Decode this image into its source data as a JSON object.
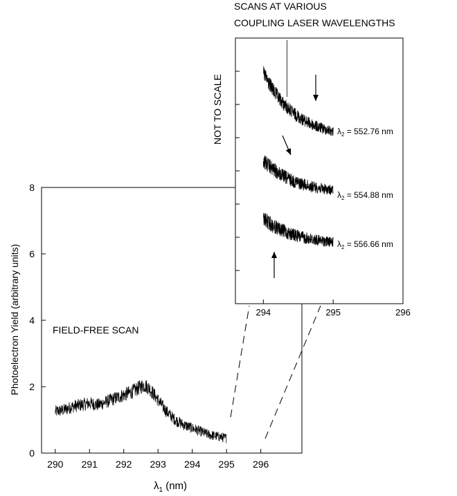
{
  "chart_data": [
    {
      "type": "line",
      "title": "",
      "xlabel_symbol": "λ",
      "xlabel_sub": "1",
      "xlabel_unit": " (nm)",
      "ylabel": "Photoelectron Yield (arbitrary units)",
      "xlim": [
        289.6,
        297.2
      ],
      "ylim": [
        0,
        8
      ],
      "xticks": [
        290,
        291,
        292,
        293,
        294,
        295,
        296
      ],
      "yticks": [
        0,
        2,
        4,
        6,
        8
      ],
      "annotation": "FIELD-FREE SCAN",
      "series": [
        {
          "x": [
            290.0,
            290.25,
            290.5,
            290.75,
            291.0,
            291.25,
            291.5,
            291.75,
            292.0,
            292.25,
            292.5,
            292.6,
            292.75,
            293.0,
            293.25,
            293.5,
            293.75,
            294.0,
            294.25,
            294.5,
            294.75,
            295.0
          ],
          "y": [
            1.25,
            1.3,
            1.4,
            1.45,
            1.5,
            1.45,
            1.55,
            1.65,
            1.75,
            1.85,
            2.0,
            2.05,
            1.95,
            1.6,
            1.25,
            1.0,
            0.85,
            0.75,
            0.65,
            0.55,
            0.5,
            0.45
          ]
        }
      ]
    },
    {
      "type": "line",
      "title": "SCANS AT VARIOUS\nCOUPLING LASER WAVELENGTHS",
      "title_lines": [
        "SCANS AT VARIOUS",
        "COUPLING LASER WAVELENGTHS"
      ],
      "annotation": "NOT TO SCALE",
      "xlim": [
        293.6,
        296.0
      ],
      "xticks": [
        294,
        295,
        296
      ],
      "series": [
        {
          "label": "λ2 = 552.76 nm",
          "label_prefix": "λ",
          "label_sub": "2",
          "label_value": " = 552.76 nm",
          "x": [
            294.0,
            294.2,
            294.4,
            294.6,
            294.8,
            295.0
          ],
          "y": [
            8.0,
            7.6,
            7.1,
            6.7,
            6.6,
            6.5
          ]
        },
        {
          "label": "λ2 = 554.88 nm",
          "label_prefix": "λ",
          "label_sub": "2",
          "label_value": " = 554.88 nm",
          "x": [
            294.0,
            294.2,
            294.4,
            294.6,
            294.8,
            295.0
          ],
          "y": [
            5.2,
            5.0,
            4.7,
            4.4,
            4.1,
            3.9
          ]
        },
        {
          "label": "λ2 = 556.66 nm",
          "label_prefix": "λ",
          "label_sub": "2",
          "label_value": " = 556.66 nm",
          "x": [
            294.0,
            294.2,
            294.4,
            294.6,
            294.8,
            295.0
          ],
          "y": [
            2.6,
            2.3,
            2.1,
            1.8,
            1.5,
            1.2
          ]
        }
      ]
    }
  ]
}
